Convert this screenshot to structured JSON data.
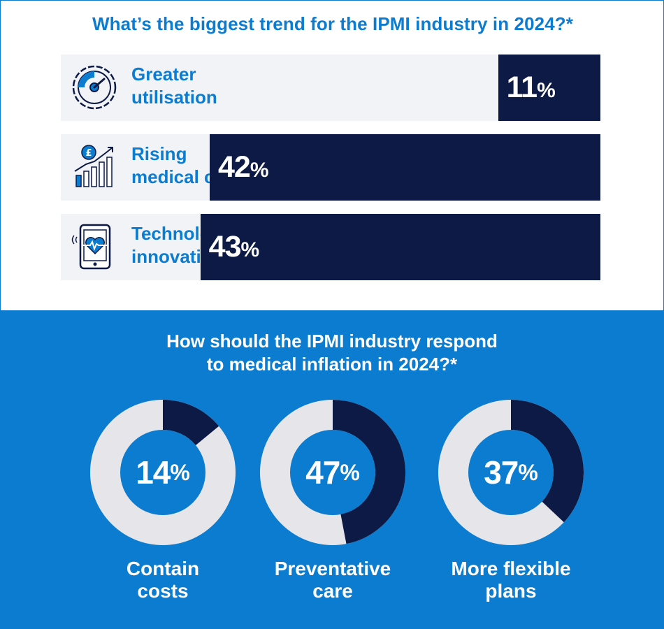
{
  "colors": {
    "brand_blue": "#0b7ccf",
    "navy": "#0c1a45",
    "bar_track": "#f2f3f7",
    "donut_track": "#e6e6ea",
    "white": "#ffffff"
  },
  "chart_data": [
    {
      "type": "bar",
      "orientation": "horizontal",
      "title": "What’s the biggest trend for the IPMI industry in 2024?*",
      "categories": [
        "Greater utilisation",
        "Rising medical costs",
        "Technology innovation"
      ],
      "values": [
        11,
        42,
        43
      ],
      "unit": "%",
      "value_labels": [
        "11",
        "42",
        "43"
      ],
      "label_lines": [
        [
          "Greater",
          "utilisation"
        ],
        [
          "Rising",
          "medical costs"
        ],
        [
          "Technology",
          "innovation"
        ]
      ],
      "icons": [
        "speedometer-icon",
        "rising-costs-chart-icon",
        "tablet-heart-icon"
      ],
      "xlim": [
        0,
        58
      ]
    },
    {
      "type": "pie",
      "variant": "donut",
      "title_lines": [
        "How should the IPMI industry respond",
        "to medical inflation in 2024?*"
      ],
      "categories": [
        "Contain costs",
        "Preventative care",
        "More flexible plans"
      ],
      "values": [
        14,
        47,
        37
      ],
      "unit": "%",
      "value_labels": [
        "14",
        "47",
        "37"
      ],
      "label_lines": [
        [
          "Contain",
          "costs"
        ],
        [
          "Preventative",
          "care"
        ],
        [
          "More flexible",
          "plans"
        ]
      ]
    }
  ]
}
